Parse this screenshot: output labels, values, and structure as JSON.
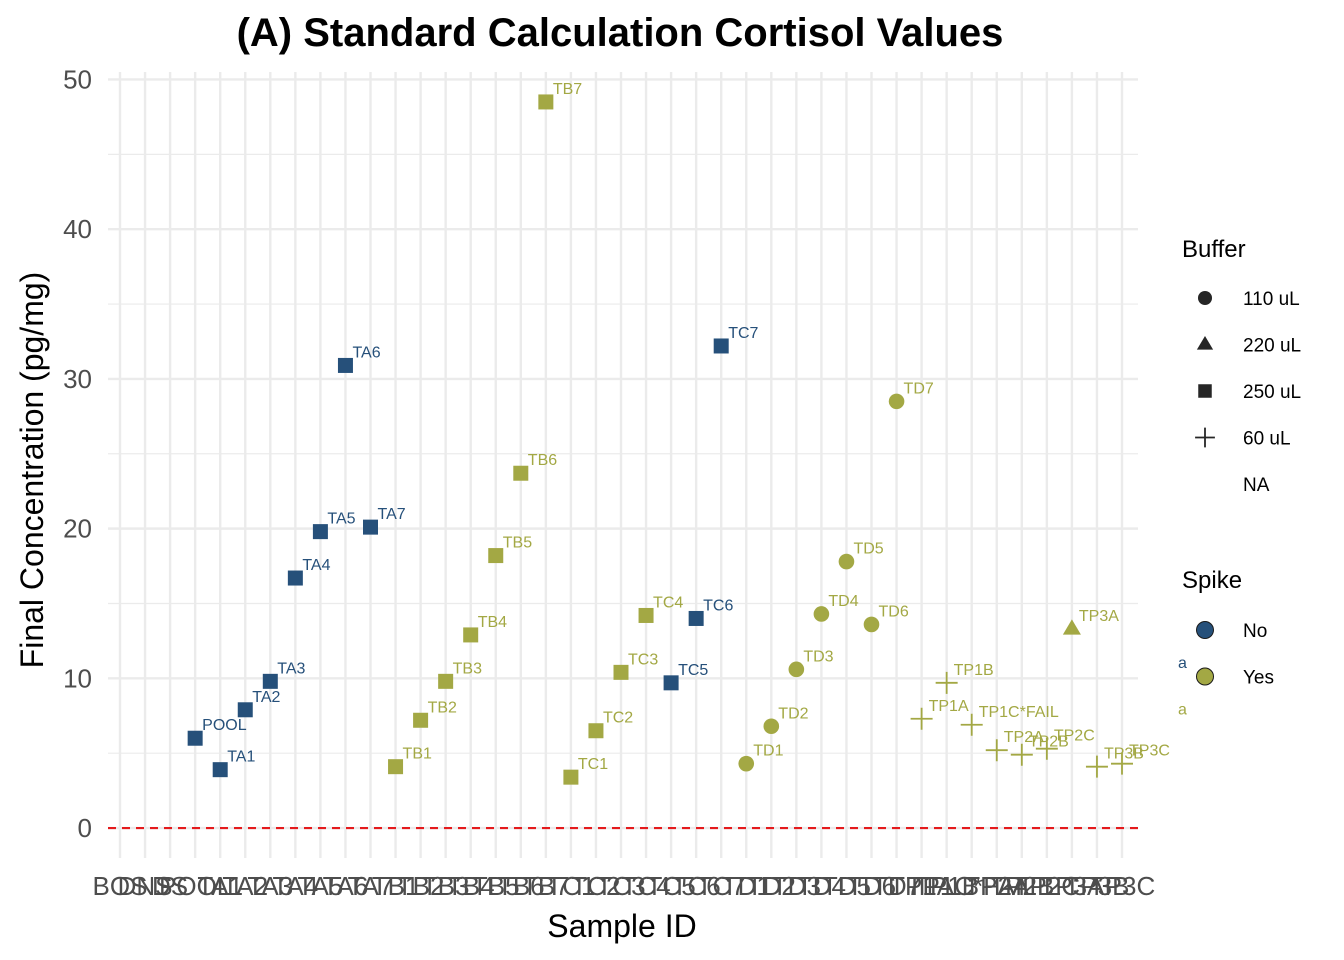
{
  "chart_data": {
    "type": "scatter",
    "title": "(A) Standard Calculation Cortisol Values",
    "xlabel": "Sample ID",
    "ylabel": "Final Concentration (pg/mg)",
    "ylim": [
      -2,
      50.5
    ],
    "yticks": [
      0,
      10,
      20,
      30,
      40,
      50
    ],
    "grid": true,
    "reference_line": {
      "y": 0,
      "color": "#e41a1c",
      "style": "dashed"
    },
    "categories": [
      "BOS",
      "DNS",
      "DS",
      "POOL",
      "TA1",
      "TA2",
      "TA3",
      "TA4",
      "TA5",
      "TA6",
      "TA7",
      "TB1",
      "TB2",
      "TB3",
      "TB4",
      "TB5",
      "TB6",
      "TB7",
      "TC1",
      "TC2",
      "TC3",
      "TC4",
      "TC5",
      "TC6",
      "TC7",
      "TD1",
      "TD2",
      "TD3",
      "TD4",
      "TD5",
      "TD6",
      "TD7",
      "TP1A",
      "TP1B",
      "TP1C*FAIL",
      "TP2A",
      "TP2B",
      "TP2C",
      "TP3A",
      "TP3B",
      "TP3C"
    ],
    "points": [
      {
        "x": "POOL",
        "y": 6.0,
        "buffer": "250 uL",
        "spike": "No"
      },
      {
        "x": "TA1",
        "y": 3.9,
        "buffer": "250 uL",
        "spike": "No"
      },
      {
        "x": "TA2",
        "y": 7.9,
        "buffer": "250 uL",
        "spike": "No"
      },
      {
        "x": "TA3",
        "y": 9.8,
        "buffer": "250 uL",
        "spike": "No"
      },
      {
        "x": "TA4",
        "y": 16.7,
        "buffer": "250 uL",
        "spike": "No"
      },
      {
        "x": "TA5",
        "y": 19.8,
        "buffer": "250 uL",
        "spike": "No"
      },
      {
        "x": "TA6",
        "y": 30.9,
        "buffer": "250 uL",
        "spike": "No"
      },
      {
        "x": "TA7",
        "y": 20.1,
        "buffer": "250 uL",
        "spike": "No"
      },
      {
        "x": "TB1",
        "y": 4.1,
        "buffer": "250 uL",
        "spike": "Yes"
      },
      {
        "x": "TB2",
        "y": 7.2,
        "buffer": "250 uL",
        "spike": "Yes"
      },
      {
        "x": "TB3",
        "y": 9.8,
        "buffer": "250 uL",
        "spike": "Yes"
      },
      {
        "x": "TB4",
        "y": 12.9,
        "buffer": "250 uL",
        "spike": "Yes"
      },
      {
        "x": "TB5",
        "y": 18.2,
        "buffer": "250 uL",
        "spike": "Yes"
      },
      {
        "x": "TB6",
        "y": 23.7,
        "buffer": "250 uL",
        "spike": "Yes"
      },
      {
        "x": "TB7",
        "y": 48.5,
        "buffer": "250 uL",
        "spike": "Yes"
      },
      {
        "x": "TC1",
        "y": 3.4,
        "buffer": "250 uL",
        "spike": "Yes"
      },
      {
        "x": "TC2",
        "y": 6.5,
        "buffer": "250 uL",
        "spike": "Yes"
      },
      {
        "x": "TC3",
        "y": 10.4,
        "buffer": "250 uL",
        "spike": "Yes"
      },
      {
        "x": "TC4",
        "y": 14.2,
        "buffer": "250 uL",
        "spike": "Yes"
      },
      {
        "x": "TC5",
        "y": 9.7,
        "buffer": "250 uL",
        "spike": "No"
      },
      {
        "x": "TC6",
        "y": 14.0,
        "buffer": "250 uL",
        "spike": "No"
      },
      {
        "x": "TC7",
        "y": 32.2,
        "buffer": "250 uL",
        "spike": "No"
      },
      {
        "x": "TD1",
        "y": 4.3,
        "buffer": "110 uL",
        "spike": "Yes"
      },
      {
        "x": "TD2",
        "y": 6.8,
        "buffer": "110 uL",
        "spike": "Yes"
      },
      {
        "x": "TD3",
        "y": 10.6,
        "buffer": "110 uL",
        "spike": "Yes"
      },
      {
        "x": "TD4",
        "y": 14.3,
        "buffer": "110 uL",
        "spike": "Yes"
      },
      {
        "x": "TD5",
        "y": 17.8,
        "buffer": "110 uL",
        "spike": "Yes"
      },
      {
        "x": "TD6",
        "y": 13.6,
        "buffer": "110 uL",
        "spike": "Yes"
      },
      {
        "x": "TD7",
        "y": 28.5,
        "buffer": "110 uL",
        "spike": "Yes"
      },
      {
        "x": "TP1A",
        "y": 7.3,
        "buffer": "60 uL",
        "spike": "Yes"
      },
      {
        "x": "TP1B",
        "y": 9.7,
        "buffer": "60 uL",
        "spike": "Yes"
      },
      {
        "x": "TP1C*FAIL",
        "y": 6.9,
        "buffer": "60 uL",
        "spike": "Yes"
      },
      {
        "x": "TP2A",
        "y": 5.2,
        "buffer": "60 uL",
        "spike": "Yes"
      },
      {
        "x": "TP2B",
        "y": 4.9,
        "buffer": "60 uL",
        "spike": "Yes"
      },
      {
        "x": "TP2C",
        "y": 5.3,
        "buffer": "60 uL",
        "spike": "Yes"
      },
      {
        "x": "TP3A",
        "y": 13.3,
        "buffer": "220 uL",
        "spike": "Yes"
      },
      {
        "x": "TP3B",
        "y": 4.1,
        "buffer": "60 uL",
        "spike": "Yes"
      },
      {
        "x": "TP3C",
        "y": 4.3,
        "buffer": "60 uL",
        "spike": "Yes"
      }
    ],
    "legend": {
      "placement": "right",
      "buffer": {
        "title": "Buffer",
        "items": [
          {
            "label": "110 uL",
            "shape": "circle"
          },
          {
            "label": "220 uL",
            "shape": "triangle"
          },
          {
            "label": "250 uL",
            "shape": "square"
          },
          {
            "label": "60 uL",
            "shape": "plus"
          },
          {
            "label": "NA",
            "shape": "none"
          }
        ]
      },
      "spike": {
        "title": "Spike",
        "key_text": "a",
        "items": [
          {
            "label": "No",
            "color": "#26507a"
          },
          {
            "label": "Yes",
            "color": "#a3a844"
          }
        ]
      }
    },
    "colors": {
      "No": "#26507a",
      "Yes": "#a3a844",
      "grid": "#ebebeb",
      "reference": "#e41a1c"
    }
  }
}
